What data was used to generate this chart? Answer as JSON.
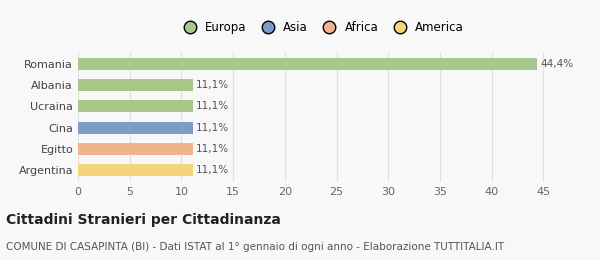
{
  "categories": [
    "Argentina",
    "Egitto",
    "Cina",
    "Ucraina",
    "Albania",
    "Romania"
  ],
  "values": [
    11.1,
    11.1,
    11.1,
    11.1,
    11.1,
    44.4
  ],
  "colors": [
    "#f5d57a",
    "#f0b48a",
    "#7b9dc9",
    "#a8c78a",
    "#a8c78a",
    "#a8c78a"
  ],
  "labels": [
    "11,1%",
    "11,1%",
    "11,1%",
    "11,1%",
    "11,1%",
    "44,4%"
  ],
  "legend": [
    {
      "label": "Europa",
      "color": "#a8c78a"
    },
    {
      "label": "Asia",
      "color": "#7b9dc9"
    },
    {
      "label": "Africa",
      "color": "#f0b48a"
    },
    {
      "label": "America",
      "color": "#f5d57a"
    }
  ],
  "xlim": [
    0,
    47
  ],
  "xticks": [
    0,
    5,
    10,
    15,
    20,
    25,
    30,
    35,
    40,
    45
  ],
  "title": "Cittadini Stranieri per Cittadinanza",
  "subtitle": "COMUNE DI CASAPINTA (BI) - Dati ISTAT al 1° gennaio di ogni anno - Elaborazione TUTTITALIA.IT",
  "background_color": "#f8f8f8",
  "grid_color": "#e0e0e0",
  "bar_label_fontsize": 7.5,
  "title_fontsize": 10,
  "subtitle_fontsize": 7.5,
  "tick_fontsize": 8
}
